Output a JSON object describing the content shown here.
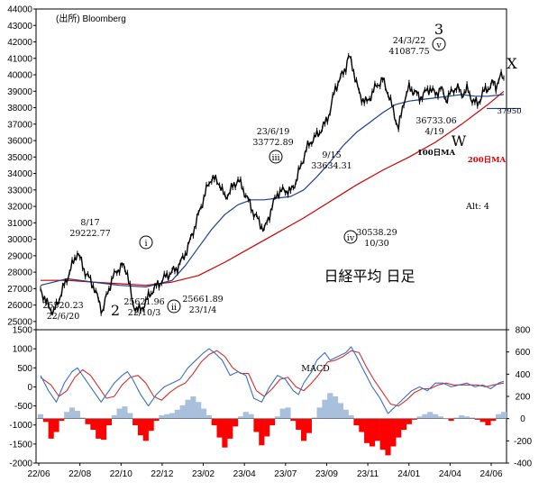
{
  "chart_data": [
    {
      "type": "line",
      "title": "日経平均 日足",
      "source": "(出所) Bloomberg",
      "x_tick_labels": [
        "22/06",
        "22/08",
        "22/10",
        "22/12",
        "23/02",
        "23/04",
        "23/07",
        "23/09",
        "23/11",
        "24/01",
        "24/04",
        "24/06"
      ],
      "y_ticks": [
        25000,
        26000,
        27000,
        28000,
        29000,
        30000,
        31000,
        32000,
        33000,
        34000,
        35000,
        36000,
        37000,
        38000,
        39000,
        40000,
        41000,
        42000,
        43000,
        44000
      ],
      "ylim": [
        24500,
        44000
      ],
      "series": [
        {
          "name": "日経平均",
          "color": "#000000",
          "x": [
            0,
            4,
            10,
            16,
            22,
            28,
            34,
            40,
            47,
            50,
            54,
            58,
            62,
            66,
            70,
            76,
            82,
            86,
            90,
            96,
            100,
            104,
            108,
            112,
            120,
            126,
            130,
            136,
            140,
            150,
            156,
            162,
            170,
            176,
            180,
            186,
            190,
            194,
            198,
            202,
            206,
            210,
            216,
            220,
            224,
            228,
            232,
            234,
            236,
            238,
            240,
            242,
            244,
            248,
            252,
            256,
            260,
            264,
            268,
            272,
            276,
            280,
            284,
            288,
            292,
            296,
            300,
            304,
            308,
            312,
            316,
            320,
            324,
            328,
            332,
            336,
            340,
            344,
            346,
            348,
            350,
            352
          ],
          "values": [
            27000,
            26200,
            25520,
            26800,
            28000,
            29222,
            28000,
            27200,
            25621,
            26500,
            27500,
            28100,
            28400,
            28000,
            26000,
            25661,
            26500,
            27000,
            27300,
            27800,
            28000,
            28300,
            28800,
            29500,
            31500,
            33000,
            33772,
            33400,
            32500,
            33634,
            32700,
            31600,
            30538,
            32000,
            32800,
            33000,
            32900,
            33500,
            34500,
            35500,
            36000,
            36300,
            37000,
            37800,
            39200,
            39800,
            40500,
            41087,
            40800,
            40200,
            39500,
            38900,
            38600,
            38300,
            38900,
            39400,
            39700,
            38900,
            37800,
            36733,
            38400,
            39200,
            39000,
            38600,
            38900,
            39200,
            38800,
            39200,
            38500,
            38900,
            39300,
            38800,
            39100,
            38500,
            38200,
            38900,
            39200,
            39500,
            39300,
            39700,
            39900,
            39800
          ]
        },
        {
          "name": "100日MA",
          "color": "#1f3f8f",
          "x": [
            0,
            20,
            40,
            60,
            80,
            100,
            110,
            120,
            130,
            140,
            150,
            160,
            170,
            180,
            190,
            200,
            210,
            220,
            230,
            240,
            250,
            260,
            270,
            280,
            290,
            300,
            310,
            320,
            330,
            340,
            352
          ],
          "values": [
            27200,
            27600,
            27400,
            27200,
            27100,
            27500,
            28400,
            29500,
            30600,
            31500,
            32100,
            32400,
            32400,
            32500,
            32600,
            33000,
            33800,
            34700,
            35700,
            36500,
            37100,
            37700,
            38200,
            38400,
            38500,
            38600,
            38700,
            38800,
            38700,
            38700,
            38800
          ]
        },
        {
          "name": "200日MA",
          "color": "#d00000",
          "x": [
            0,
            20,
            40,
            60,
            80,
            100,
            120,
            140,
            160,
            180,
            200,
            220,
            240,
            260,
            280,
            300,
            320,
            340,
            352
          ],
          "values": [
            27500,
            27500,
            27400,
            27300,
            27200,
            27400,
            27800,
            28600,
            29500,
            30400,
            31300,
            32300,
            33300,
            34200,
            35000,
            35900,
            37000,
            38200,
            39000
          ]
        }
      ],
      "annotations": [
        {
          "x": 0.6,
          "y": 0.9,
          "text": "8/17"
        },
        {
          "x": 0.6,
          "y": 0.9,
          "text": "29222.77"
        },
        {
          "x": 0.6,
          "y": 0.9,
          "text": "25520.23"
        },
        {
          "x": 0.6,
          "y": 0.9,
          "text": "22/6/20"
        },
        {
          "x": 0.6,
          "y": 0.9,
          "text": "2"
        },
        {
          "x": 0.6,
          "y": 0.9,
          "text": "25621.96"
        },
        {
          "x": 0.6,
          "y": 0.9,
          "text": "22/10/3"
        },
        {
          "x": 0.6,
          "y": 0.9,
          "text": "i"
        },
        {
          "x": 0.6,
          "y": 0.9,
          "text": "ii"
        },
        {
          "x": 0.6,
          "y": 0.9,
          "text": "25661.89"
        },
        {
          "x": 0.6,
          "y": 0.9,
          "text": "23/1/4"
        },
        {
          "x": 0.6,
          "y": 0.9,
          "text": "23/6/19"
        },
        {
          "x": 0.6,
          "y": 0.9,
          "text": "33772.89"
        },
        {
          "x": 0.6,
          "y": 0.9,
          "text": "iii"
        },
        {
          "x": 0.6,
          "y": 0.9,
          "text": "9/15"
        },
        {
          "x": 0.6,
          "y": 0.9,
          "text": "33634.31"
        },
        {
          "x": 0.6,
          "y": 0.9,
          "text": "iv"
        },
        {
          "x": 0.6,
          "y": 0.9,
          "text": "30538.29"
        },
        {
          "x": 0.6,
          "y": 0.9,
          "text": "10/30"
        },
        {
          "x": 0.6,
          "y": 0.9,
          "text": "3"
        },
        {
          "x": 0.6,
          "y": 0.9,
          "text": "24/3/22"
        },
        {
          "x": 0.6,
          "y": 0.9,
          "text": "41087.75"
        },
        {
          "x": 0.6,
          "y": 0.9,
          "text": "v"
        },
        {
          "x": 0.6,
          "y": 0.9,
          "text": "X"
        },
        {
          "x": 0.6,
          "y": 0.9,
          "text": "36733.06"
        },
        {
          "x": 0.6,
          "y": 0.9,
          "text": "4/19"
        },
        {
          "x": 0.6,
          "y": 0.9,
          "text": "W"
        },
        {
          "x": 0.6,
          "y": 0.9,
          "text": "100日MA"
        },
        {
          "x": 0.6,
          "y": 0.9,
          "text": "200日MA"
        },
        {
          "x": 0.6,
          "y": 0.9,
          "text": "37950"
        },
        {
          "x": 0.6,
          "y": 0.9,
          "text": "Alt: 4"
        }
      ]
    },
    {
      "type": "line",
      "title": "MACD",
      "y_ticks_left": [
        1500,
        1000,
        500,
        0,
        -500,
        -1000,
        -1500,
        -2000
      ],
      "ylim_left": [
        -2000,
        1500
      ],
      "y_ticks_right": [
        800,
        600,
        400,
        200,
        0,
        -200,
        -400
      ],
      "ylim_right": [
        -400,
        800
      ],
      "series": [
        {
          "name": "MACD",
          "color": "#3a6fc4",
          "axis": "left",
          "x": [
            0,
            6,
            12,
            18,
            24,
            28,
            34,
            40,
            46,
            50,
            56,
            62,
            66,
            70,
            76,
            82,
            88,
            94,
            100,
            106,
            112,
            118,
            124,
            128,
            132,
            138,
            144,
            150,
            156,
            162,
            168,
            174,
            180,
            186,
            192,
            196,
            200,
            206,
            210,
            216,
            220,
            226,
            232,
            236,
            240,
            246,
            252,
            258,
            264,
            270,
            276,
            282,
            288,
            294,
            300,
            306,
            312,
            318,
            324,
            330,
            336,
            342,
            348,
            352
          ],
          "values": [
            300,
            -100,
            -400,
            100,
            400,
            500,
            200,
            -100,
            -400,
            -200,
            100,
            300,
            400,
            200,
            -200,
            -500,
            -200,
            0,
            100,
            200,
            500,
            700,
            900,
            1000,
            900,
            700,
            300,
            400,
            300,
            -300,
            -400,
            0,
            300,
            200,
            -100,
            -200,
            100,
            400,
            700,
            900,
            700,
            800,
            900,
            1050,
            800,
            400,
            0,
            -300,
            -700,
            -500,
            -300,
            -100,
            0,
            -100,
            100,
            100,
            0,
            50,
            100,
            0,
            50,
            -50,
            100,
            150
          ]
        },
        {
          "name": "Signal",
          "color": "#d03030",
          "axis": "left",
          "x": [
            0,
            8,
            14,
            20,
            26,
            32,
            38,
            44,
            50,
            56,
            62,
            68,
            74,
            80,
            86,
            92,
            98,
            104,
            110,
            116,
            122,
            128,
            134,
            140,
            146,
            152,
            158,
            164,
            170,
            176,
            182,
            188,
            194,
            200,
            206,
            212,
            218,
            224,
            230,
            236,
            242,
            248,
            254,
            260,
            266,
            272,
            278,
            284,
            290,
            296,
            302,
            308,
            314,
            320,
            326,
            332,
            338,
            344,
            352
          ],
          "values": [
            250,
            50,
            -250,
            -100,
            250,
            450,
            300,
            0,
            -300,
            -250,
            50,
            250,
            300,
            100,
            -250,
            -350,
            -150,
            0,
            100,
            350,
            650,
            850,
            950,
            800,
            500,
            350,
            350,
            -100,
            -250,
            -50,
            200,
            250,
            0,
            -100,
            100,
            350,
            650,
            700,
            800,
            950,
            900,
            500,
            150,
            -150,
            -450,
            -500,
            -350,
            -150,
            -50,
            -50,
            50,
            100,
            50,
            50,
            50,
            50,
            0,
            50,
            100
          ]
        },
        {
          "name": "Histogram",
          "color_pos": "#a9c0dd",
          "color_neg": "#ff0000",
          "axis": "right",
          "x": [
            0,
            4,
            8,
            12,
            16,
            20,
            24,
            28,
            32,
            36,
            40,
            44,
            48,
            52,
            56,
            60,
            64,
            68,
            72,
            76,
            80,
            84,
            88,
            92,
            96,
            100,
            104,
            108,
            112,
            116,
            120,
            124,
            128,
            132,
            136,
            140,
            144,
            148,
            152,
            156,
            160,
            164,
            168,
            172,
            176,
            180,
            184,
            188,
            192,
            196,
            200,
            204,
            208,
            212,
            216,
            220,
            224,
            228,
            232,
            236,
            240,
            244,
            248,
            252,
            256,
            260,
            264,
            268,
            272,
            276,
            280,
            284,
            288,
            292,
            296,
            300,
            304,
            308,
            312,
            316,
            320,
            324,
            328,
            332,
            336,
            340,
            344,
            348,
            352
          ],
          "values": [
            40,
            -30,
            -180,
            -120,
            -20,
            60,
            100,
            70,
            10,
            -50,
            -100,
            -180,
            -190,
            -60,
            30,
            90,
            110,
            50,
            -60,
            -150,
            -200,
            -110,
            -20,
            30,
            40,
            50,
            80,
            120,
            170,
            200,
            150,
            90,
            30,
            -60,
            -170,
            -260,
            -180,
            -70,
            20,
            60,
            40,
            -120,
            -240,
            -160,
            -60,
            20,
            90,
            100,
            -20,
            -100,
            -200,
            -130,
            10,
            100,
            170,
            230,
            200,
            140,
            80,
            30,
            -60,
            -120,
            -220,
            -250,
            -200,
            -280,
            -330,
            -250,
            -170,
            -100,
            -50,
            -10,
            20,
            40,
            60,
            40,
            20,
            0,
            -20,
            10,
            30,
            20,
            10,
            -10,
            -30,
            -60,
            -20,
            40,
            60
          ]
        }
      ]
    }
  ]
}
